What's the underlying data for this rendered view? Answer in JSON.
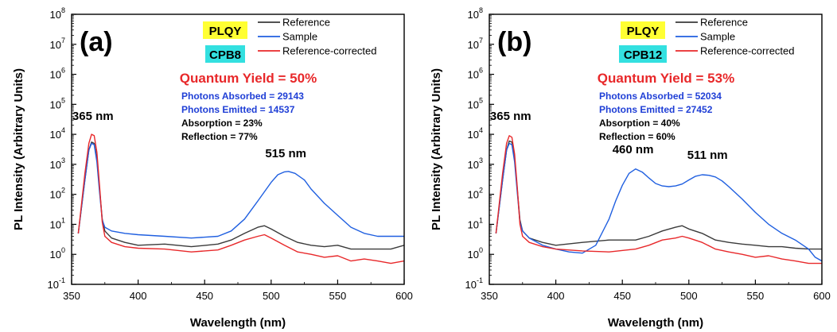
{
  "colors": {
    "reference": "#3a3a3a",
    "sample": "#1f5fe0",
    "reference_corrected": "#e8282a",
    "qy": "#e8282a",
    "photons": "#1f3fd6",
    "info": "#000000",
    "badge_plqy": "#ffff33",
    "badge_sample": "#33e0e0"
  },
  "chart_data": [
    {
      "type": "line",
      "panel_label": "(a)",
      "xlabel": "Wavelength (nm)",
      "ylabel": "PL Intensity (Arbitrary Units)",
      "xlim": [
        350,
        600
      ],
      "ylim": [
        0.1,
        100000000
      ],
      "yscale": "log",
      "x_ticks": [
        "350",
        "400",
        "450",
        "500",
        "550",
        "600"
      ],
      "x_tick_values": [
        350,
        400,
        450,
        500,
        550,
        600
      ],
      "y_ticks": [
        {
          "base": "10",
          "exp": "-1"
        },
        {
          "base": "10",
          "exp": "0"
        },
        {
          "base": "10",
          "exp": "1"
        },
        {
          "base": "10",
          "exp": "2"
        },
        {
          "base": "10",
          "exp": "3"
        },
        {
          "base": "10",
          "exp": "4"
        },
        {
          "base": "10",
          "exp": "5"
        },
        {
          "base": "10",
          "exp": "6"
        },
        {
          "base": "10",
          "exp": "7"
        },
        {
          "base": "10",
          "exp": "8"
        }
      ],
      "y_tick_exponents": [
        -1,
        0,
        1,
        2,
        3,
        4,
        5,
        6,
        7,
        8
      ],
      "legend": {
        "placement": "top-right",
        "entries": [
          "Reference",
          "Sample",
          "Reference-corrected"
        ]
      },
      "badges": [
        "PLQY",
        "CPB8"
      ],
      "quantum_yield": "Quantum Yield = 50%",
      "info_lines": [
        {
          "text": "Photons Absorbed = 29143",
          "kind": "photons"
        },
        {
          "text": "Photons Emitted = 14537",
          "kind": "photons"
        },
        {
          "text": "Absorption = 23%",
          "kind": "info"
        },
        {
          "text": "Reflection = 77%",
          "kind": "info"
        }
      ],
      "annotations": [
        {
          "text": "365 nm",
          "x": 366,
          "y": 30000
        },
        {
          "text": "515 nm",
          "x": 511,
          "y": 1700
        }
      ],
      "series": [
        {
          "name": "Reference",
          "color_key": "reference",
          "z": 1,
          "x": [
            355,
            360,
            363,
            365,
            367,
            369,
            371,
            373,
            375,
            380,
            390,
            400,
            420,
            440,
            460,
            470,
            480,
            490,
            495,
            500,
            510,
            520,
            530,
            540,
            550,
            560,
            570,
            580,
            590,
            600
          ],
          "y": [
            5,
            300,
            3000,
            5500,
            5000,
            1500,
            150,
            15,
            6,
            3.5,
            2.5,
            2,
            2.2,
            1.8,
            2.2,
            3,
            5,
            8,
            9,
            7,
            4,
            2.5,
            2,
            1.8,
            2,
            1.5,
            1.5,
            1.5,
            1.5,
            2
          ]
        },
        {
          "name": "Sample",
          "color_key": "sample",
          "z": 2,
          "x": [
            355,
            360,
            363,
            365,
            367,
            369,
            371,
            373,
            375,
            380,
            390,
            400,
            420,
            440,
            460,
            470,
            480,
            490,
            500,
            505,
            510,
            513,
            518,
            525,
            530,
            540,
            550,
            560,
            570,
            580,
            590,
            600
          ],
          "y": [
            5,
            300,
            3000,
            5000,
            4500,
            1200,
            120,
            14,
            8,
            6,
            5,
            4.5,
            4,
            3.5,
            4,
            6,
            15,
            60,
            250,
            450,
            560,
            580,
            500,
            300,
            150,
            50,
            20,
            8,
            5,
            4,
            4,
            4
          ]
        },
        {
          "name": "Reference-corrected",
          "color_key": "reference_corrected",
          "z": 3,
          "x": [
            355,
            360,
            363,
            365,
            367,
            369,
            371,
            373,
            375,
            380,
            390,
            400,
            420,
            440,
            460,
            470,
            480,
            490,
            495,
            500,
            510,
            520,
            530,
            540,
            550,
            560,
            570,
            580,
            590,
            600
          ],
          "y": [
            5,
            500,
            5000,
            10000,
            9000,
            2500,
            200,
            12,
            4,
            2.5,
            1.8,
            1.6,
            1.5,
            1.2,
            1.4,
            2,
            3,
            4,
            4.5,
            3.5,
            2,
            1.2,
            1,
            0.8,
            0.9,
            0.6,
            0.7,
            0.6,
            0.5,
            0.6
          ]
        }
      ]
    },
    {
      "type": "line",
      "panel_label": "(b)",
      "xlabel": "Wavelength (nm)",
      "ylabel": "PL Intensity (Arbitrary Units)",
      "xlim": [
        350,
        600
      ],
      "ylim": [
        0.1,
        100000000
      ],
      "yscale": "log",
      "x_ticks": [
        "350",
        "400",
        "450",
        "500",
        "550",
        "600"
      ],
      "x_tick_values": [
        350,
        400,
        450,
        500,
        550,
        600
      ],
      "y_ticks": [
        {
          "base": "10",
          "exp": "-1"
        },
        {
          "base": "10",
          "exp": "0"
        },
        {
          "base": "10",
          "exp": "1"
        },
        {
          "base": "10",
          "exp": "2"
        },
        {
          "base": "10",
          "exp": "3"
        },
        {
          "base": "10",
          "exp": "4"
        },
        {
          "base": "10",
          "exp": "5"
        },
        {
          "base": "10",
          "exp": "6"
        },
        {
          "base": "10",
          "exp": "7"
        },
        {
          "base": "10",
          "exp": "8"
        }
      ],
      "y_tick_exponents": [
        -1,
        0,
        1,
        2,
        3,
        4,
        5,
        6,
        7,
        8
      ],
      "legend": {
        "placement": "top-right",
        "entries": [
          "Reference",
          "Sample",
          "Reference-corrected"
        ]
      },
      "badges": [
        "PLQY",
        "CPB12"
      ],
      "quantum_yield": "Quantum Yield = 53%",
      "info_lines": [
        {
          "text": "Photons Absorbed = 52034",
          "kind": "photons"
        },
        {
          "text": "Photons Emitted = 27452",
          "kind": "photons"
        },
        {
          "text": "Absorption = 40%",
          "kind": "info"
        },
        {
          "text": "Reflection = 60%",
          "kind": "info"
        }
      ],
      "annotations": [
        {
          "text": "365 nm",
          "x": 366,
          "y": 30000
        },
        {
          "text": "460 nm",
          "x": 458,
          "y": 2300
        },
        {
          "text": "511 nm",
          "x": 514,
          "y": 1500
        }
      ],
      "series": [
        {
          "name": "Reference",
          "color_key": "reference",
          "z": 1,
          "x": [
            355,
            360,
            363,
            365,
            367,
            369,
            371,
            373,
            375,
            380,
            390,
            400,
            420,
            440,
            460,
            470,
            480,
            490,
            495,
            500,
            510,
            520,
            530,
            540,
            550,
            560,
            570,
            580,
            590,
            600
          ],
          "y": [
            5,
            300,
            3000,
            6000,
            5500,
            1500,
            150,
            14,
            6,
            3.5,
            2.5,
            2,
            2.5,
            3,
            3,
            4,
            6,
            8,
            9,
            7,
            5,
            3,
            2.5,
            2.2,
            2,
            1.8,
            1.8,
            1.6,
            1.5,
            1.5
          ]
        },
        {
          "name": "Sample",
          "color_key": "sample",
          "z": 2,
          "x": [
            355,
            360,
            363,
            365,
            367,
            369,
            371,
            373,
            375,
            380,
            390,
            400,
            410,
            420,
            430,
            440,
            445,
            450,
            455,
            460,
            465,
            470,
            475,
            480,
            485,
            490,
            495,
            500,
            505,
            510,
            515,
            520,
            525,
            530,
            540,
            550,
            560,
            570,
            580,
            590,
            595,
            600
          ],
          "y": [
            5,
            300,
            3000,
            5000,
            4500,
            1200,
            120,
            12,
            6,
            3.5,
            2,
            1.5,
            1.2,
            1.1,
            2,
            15,
            60,
            200,
            500,
            700,
            550,
            350,
            230,
            190,
            180,
            190,
            220,
            300,
            400,
            450,
            430,
            380,
            280,
            180,
            70,
            25,
            10,
            5,
            3,
            1.5,
            0.8,
            0.6
          ]
        },
        {
          "name": "Reference-corrected",
          "color_key": "reference_corrected",
          "z": 3,
          "x": [
            355,
            360,
            363,
            365,
            367,
            369,
            371,
            373,
            375,
            380,
            390,
            400,
            420,
            440,
            460,
            470,
            480,
            490,
            495,
            500,
            510,
            520,
            530,
            540,
            550,
            560,
            570,
            580,
            590,
            600
          ],
          "y": [
            5,
            500,
            5000,
            9000,
            8000,
            2200,
            180,
            10,
            4,
            2.5,
            1.8,
            1.5,
            1.3,
            1.2,
            1.5,
            2,
            3,
            3.5,
            4,
            3.5,
            2.5,
            1.5,
            1.2,
            1,
            0.8,
            0.9,
            0.7,
            0.6,
            0.5,
            0.5
          ]
        }
      ]
    }
  ]
}
